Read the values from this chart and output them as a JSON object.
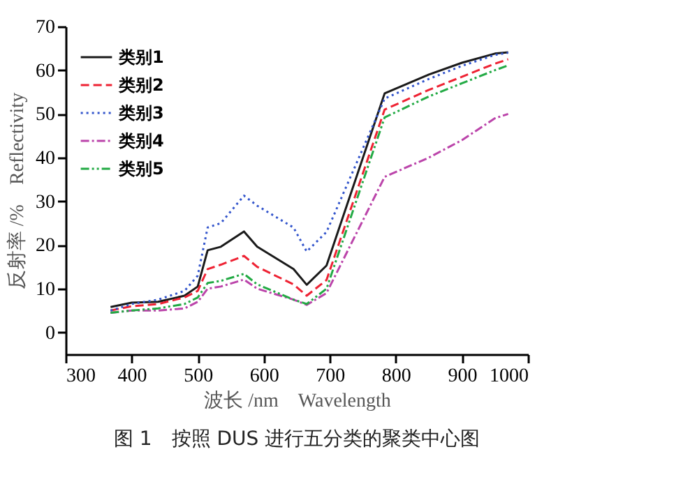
{
  "chart_data": {
    "type": "line",
    "xlabel": "波长 /nm　Wavelength",
    "ylabel": "反射率 /%　Reflectivity",
    "annotations": [
      "图 1　按照 DUS 进行五分类的聚类中心图"
    ],
    "x": [
      368,
      400,
      440,
      480,
      500,
      515,
      535,
      570,
      590,
      645,
      665,
      695,
      783,
      850,
      900,
      950,
      970
    ],
    "series": [
      {
        "name": "类别1",
        "color": "#1a1a1a",
        "line_style": "solid",
        "values": [
          5.8,
          6.8,
          7,
          8.4,
          10.5,
          18.8,
          19.6,
          23.1,
          19.6,
          14.5,
          10.9,
          15.3,
          54.7,
          59,
          61.7,
          63.8,
          64.1
        ]
      },
      {
        "name": "类别2",
        "color": "#ee2233",
        "line_style": "dashed",
        "values": [
          5,
          6,
          6.5,
          8,
          9.5,
          14.5,
          15.5,
          17.5,
          15,
          11,
          8.4,
          12,
          51,
          55.5,
          58.5,
          61.5,
          62.5
        ]
      },
      {
        "name": "类别3",
        "color": "#3355cc",
        "line_style": "dotted",
        "values": [
          5,
          6.5,
          7.5,
          9.5,
          13,
          24,
          25,
          31.3,
          29,
          24,
          18.5,
          23,
          53.5,
          58,
          61,
          63.5,
          64
        ]
      },
      {
        "name": "类别4",
        "color": "#bb44aa",
        "line_style": "dashdot",
        "values": [
          4.5,
          5,
          5,
          5.5,
          7,
          10,
          10.5,
          12.1,
          10,
          7.5,
          6.3,
          9,
          35.6,
          40,
          44,
          49,
          50
        ]
      },
      {
        "name": "类别5",
        "color": "#22aa44",
        "line_style": "dashdotdot",
        "values": [
          4.5,
          5,
          5.5,
          6.5,
          8,
          11.3,
          11.8,
          13.4,
          11,
          7.5,
          6.5,
          10,
          49.2,
          54,
          57,
          60,
          61.1
        ]
      }
    ],
    "xlim": [
      300,
      1000
    ],
    "ylim": [
      -5,
      70
    ],
    "xticks": [
      300,
      400,
      500,
      600,
      700,
      800,
      900,
      1000
    ],
    "yticks": [
      0,
      10,
      20,
      30,
      40,
      50,
      60,
      70
    ],
    "grid": false,
    "legend": "top left",
    "marker": "none"
  }
}
